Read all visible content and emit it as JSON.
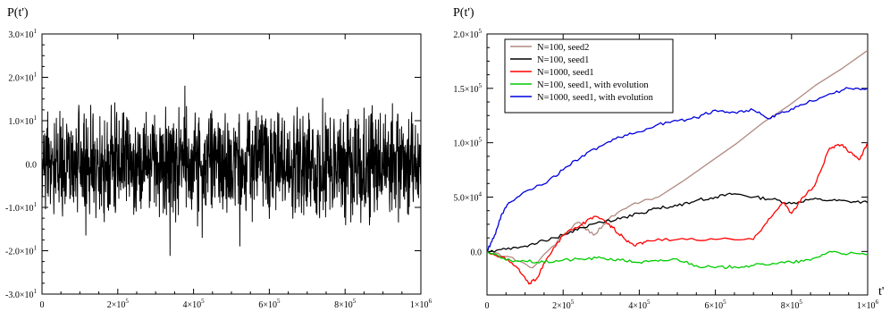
{
  "chart_data": [
    {
      "type": "line",
      "ylabel": "P(t')",
      "xlabel": "",
      "xlim": [
        0,
        1000000
      ],
      "ylim": [
        -30,
        30
      ],
      "x_ticks": [
        {
          "value": 0,
          "label": "0",
          "exp": ""
        },
        {
          "value": 200000,
          "label": "2×10",
          "exp": "5"
        },
        {
          "value": 400000,
          "label": "4×10",
          "exp": "5"
        },
        {
          "value": 600000,
          "label": "6×10",
          "exp": "5"
        },
        {
          "value": 800000,
          "label": "8×10",
          "exp": "5"
        },
        {
          "value": 1000000,
          "label": "1×10",
          "exp": "6"
        }
      ],
      "y_ticks": [
        {
          "value": -30,
          "label": "-3.0×10",
          "exp": "1"
        },
        {
          "value": -20,
          "label": "-2.0×10",
          "exp": "1"
        },
        {
          "value": -10,
          "label": "-1.0×10",
          "exp": "1"
        },
        {
          "value": 0,
          "label": "0.0",
          "exp": ""
        },
        {
          "value": 10,
          "label": "1.0×10",
          "exp": "1"
        },
        {
          "value": 20,
          "label": "2.0×10",
          "exp": "1"
        },
        {
          "value": 30,
          "label": "3.0×10",
          "exp": "1"
        }
      ],
      "series": [
        {
          "color": "#000000",
          "noise": true,
          "amplitude": 9,
          "min": -22,
          "max": 18
        }
      ]
    },
    {
      "type": "line",
      "ylabel": "P(t')",
      "xlabel": "t'",
      "xlim": [
        0,
        1000000
      ],
      "ylim": [
        -40000,
        200000
      ],
      "legend_position": "top-left",
      "x_ticks": [
        {
          "value": 0,
          "label": "0",
          "exp": ""
        },
        {
          "value": 200000,
          "label": "2×10",
          "exp": "5"
        },
        {
          "value": 400000,
          "label": "4×10",
          "exp": "5"
        },
        {
          "value": 600000,
          "label": "6×10",
          "exp": "5"
        },
        {
          "value": 800000,
          "label": "8×10",
          "exp": "5"
        },
        {
          "value": 1000000,
          "label": "1×10",
          "exp": "6"
        }
      ],
      "y_ticks": [
        {
          "value": 0,
          "label": "0.0",
          "exp": ""
        },
        {
          "value": 50000,
          "label": "5.0×10",
          "exp": "4"
        },
        {
          "value": 100000,
          "label": "1.0×10",
          "exp": "5"
        },
        {
          "value": 150000,
          "label": "1.5×10",
          "exp": "5"
        },
        {
          "value": 200000,
          "label": "2.0×10",
          "exp": "5"
        }
      ],
      "series": [
        {
          "name": "N=100, seed2",
          "color": "#b08a80",
          "x": [
            0,
            60000,
            120000,
            200000,
            240000,
            280000,
            320000,
            380000,
            450000,
            1000000
          ],
          "y": [
            0,
            -5000,
            -15000,
            15000,
            27000,
            15000,
            30000,
            43000,
            50000,
            185000
          ]
        },
        {
          "name": "N=100, seed1",
          "color": "#000000",
          "x": [
            0,
            50000,
            100000,
            150000,
            200000,
            250000,
            300000,
            350000,
            400000,
            450000,
            500000,
            550000,
            600000,
            650000,
            700000,
            750000,
            800000,
            850000,
            900000,
            950000,
            1000000
          ],
          "y": [
            0,
            2000,
            5000,
            10000,
            15000,
            22000,
            27000,
            30000,
            35000,
            40000,
            42000,
            47000,
            50000,
            53000,
            50000,
            48000,
            44000,
            48000,
            47000,
            46000,
            45000
          ]
        },
        {
          "name": "N=1000, seed1",
          "color": "#ff0000",
          "x": [
            0,
            40000,
            80000,
            110000,
            130000,
            160000,
            200000,
            250000,
            280000,
            310000,
            330000,
            360000,
            390000,
            420000,
            500000,
            600000,
            700000,
            740000,
            780000,
            800000,
            830000,
            860000,
            900000,
            930000,
            960000,
            980000,
            1000000
          ],
          "y": [
            0,
            -5000,
            -15000,
            -30000,
            -25000,
            -5000,
            15000,
            25000,
            32000,
            28000,
            22000,
            12000,
            5000,
            10000,
            11000,
            11000,
            11000,
            30000,
            45000,
            35000,
            50000,
            60000,
            95000,
            98000,
            90000,
            85000,
            100000
          ]
        },
        {
          "name": "N=100, seed1, with evolution",
          "color": "#00cc00",
          "x": [
            0,
            50000,
            100000,
            150000,
            200000,
            250000,
            300000,
            350000,
            400000,
            450000,
            500000,
            550000,
            600000,
            650000,
            700000,
            750000,
            800000,
            850000,
            900000,
            950000,
            1000000
          ],
          "y": [
            0,
            -8000,
            -9000,
            -10000,
            -8000,
            -7000,
            -6000,
            -8000,
            -10000,
            -9000,
            -7000,
            -13000,
            -15000,
            -14000,
            -13000,
            -11000,
            -10000,
            -8000,
            0,
            -2000,
            -3000
          ]
        },
        {
          "name": "N=1000, seed1, with evolution",
          "color": "#0000dd",
          "x": [
            0,
            20000,
            40000,
            60000,
            100000,
            150000,
            200000,
            250000,
            300000,
            350000,
            400000,
            450000,
            500000,
            550000,
            600000,
            650000,
            700000,
            740000,
            780000,
            830000,
            900000,
            950000,
            1000000
          ],
          "y": [
            0,
            15000,
            35000,
            45000,
            55000,
            62000,
            75000,
            88000,
            97000,
            105000,
            110000,
            117000,
            120000,
            123000,
            130000,
            128000,
            130000,
            122000,
            128000,
            135000,
            145000,
            150000,
            150000
          ]
        }
      ]
    }
  ]
}
